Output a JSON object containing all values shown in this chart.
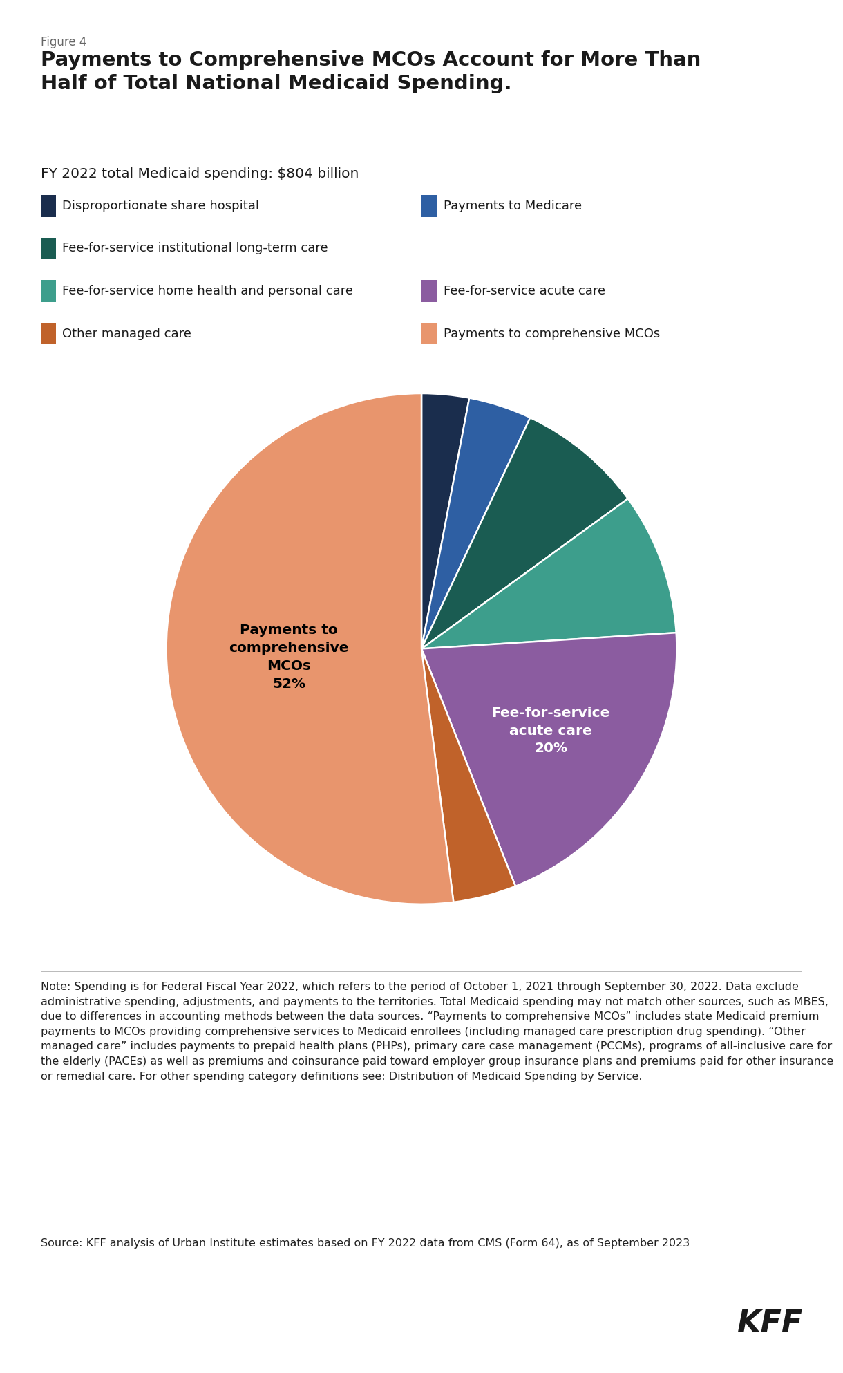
{
  "figure_label": "Figure 4",
  "title": "Payments to Comprehensive MCOs Account for More Than\nHalf of Total National Medicaid Spending.",
  "subtitle": "FY 2022 total Medicaid spending: $804 billion",
  "slices": [
    {
      "label": "Disproportionate share hospital",
      "value": 3,
      "color": "#1a2d4d"
    },
    {
      "label": "Payments to Medicare",
      "value": 4,
      "color": "#2e5fa3"
    },
    {
      "label": "Fee-for-service institutional long-term care",
      "value": 8,
      "color": "#1a5c52"
    },
    {
      "label": "Fee-for-service home health and personal care",
      "value": 9,
      "color": "#3d9e8c"
    },
    {
      "label": "Fee-for-service acute care",
      "value": 20,
      "color": "#8b5ca0"
    },
    {
      "label": "Other managed care",
      "value": 4,
      "color": "#c0622a"
    },
    {
      "label": "Payments to comprehensive MCOs",
      "value": 52,
      "color": "#e8956d"
    }
  ],
  "legend_rows": [
    [
      {
        "label": "Disproportionate share hospital",
        "color": "#1a2d4d"
      },
      {
        "label": "Payments to Medicare",
        "color": "#2e5fa3"
      }
    ],
    [
      {
        "label": "Fee-for-service institutional long-term care",
        "color": "#1a5c52"
      }
    ],
    [
      {
        "label": "Fee-for-service home health and personal care",
        "color": "#3d9e8c"
      },
      {
        "label": "Fee-for-service acute care",
        "color": "#8b5ca0"
      }
    ],
    [
      {
        "label": "Other managed care",
        "color": "#c0622a"
      },
      {
        "label": "Payments to comprehensive MCOs",
        "color": "#e8956d"
      }
    ]
  ],
  "note_text": "Note: Spending is for Federal Fiscal Year 2022, which refers to the period of October 1, 2021 through September 30, 2022. Data exclude administrative spending, adjustments, and payments to the territories. Total Medicaid spending may not match other sources, such as MBES, due to differences in accounting methods between the data sources. “Payments to comprehensive MCOs” includes state Medicaid premium payments to MCOs providing comprehensive services to Medicaid enrollees (including managed care prescription drug spending). “Other managed care” includes payments to prepaid health plans (PHPs), primary care case management (PCCMs), programs of all-inclusive care for the elderly (PACEs) as well as premiums and coinsurance paid toward employer group insurance plans and premiums paid for other insurance or remedial care. For other spending category definitions see: Distribution of Medicaid Spending by Service.",
  "source_text": "Source: KFF analysis of Urban Institute estimates based on FY 2022 data from CMS (Form 64), as of September 2023",
  "kff_text": "KFF",
  "background_color": "#ffffff",
  "title_color": "#1a1a1a",
  "text_color": "#1a1a1a",
  "fig_label_color": "#666666",
  "note_color": "#222222",
  "startangle": 90,
  "pie_label_mco": "Payments to\ncomprehensive\nMCOs\n52%",
  "pie_label_mco_color": "#000000",
  "pie_label_ffs": "Fee-for-service\nacute care\n20%",
  "pie_label_ffs_color": "#ffffff"
}
